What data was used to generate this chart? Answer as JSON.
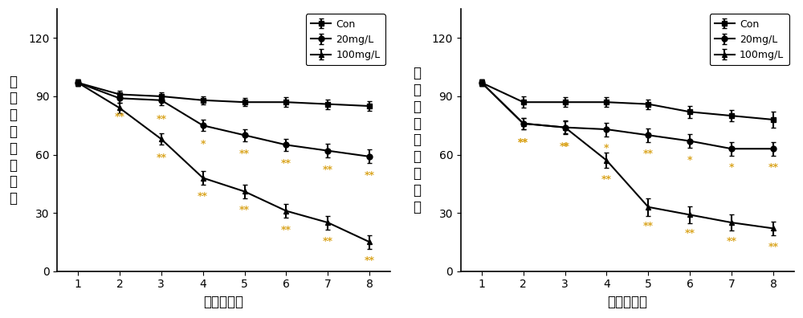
{
  "x": [
    1,
    2,
    3,
    4,
    5,
    6,
    7,
    8
  ],
  "left_ylabel": "褐飞虱若虫存活率",
  "right_ylabel": "白背飞虱若虫存活率",
  "xlabel": "时间（天）",
  "legend_labels": [
    "Con",
    "20mg/L",
    "100mg/L"
  ],
  "left": {
    "con": [
      97,
      91,
      90,
      88,
      87,
      87,
      86,
      85
    ],
    "mg20": [
      97,
      89,
      88,
      75,
      70,
      65,
      62,
      59
    ],
    "mg100": [
      97,
      84,
      68,
      48,
      41,
      31,
      25,
      15
    ],
    "con_err": [
      1.5,
      2.0,
      2.0,
      2.0,
      2.0,
      2.5,
      2.5,
      2.5
    ],
    "mg20_err": [
      1.5,
      2.5,
      2.5,
      3.0,
      3.0,
      3.0,
      3.5,
      3.5
    ],
    "mg100_err": [
      1.5,
      2.5,
      3.0,
      3.5,
      3.5,
      3.5,
      3.5,
      3.5
    ],
    "annot_20": [
      "",
      "**",
      "**",
      "*",
      "**",
      "**",
      "**",
      "**"
    ],
    "annot_100": [
      "",
      "",
      "**",
      "**",
      "**",
      "**",
      "**",
      "**"
    ]
  },
  "right": {
    "con": [
      97,
      87,
      87,
      87,
      86,
      82,
      80,
      78
    ],
    "mg20": [
      97,
      76,
      74,
      73,
      70,
      67,
      63,
      63
    ],
    "mg100": [
      97,
      76,
      74,
      57,
      33,
      29,
      25,
      22
    ],
    "con_err": [
      1.5,
      3.0,
      2.5,
      2.5,
      2.5,
      3.0,
      3.0,
      4.0
    ],
    "mg20_err": [
      1.5,
      3.0,
      3.0,
      3.5,
      3.5,
      3.5,
      3.5,
      3.5
    ],
    "mg100_err": [
      1.5,
      3.0,
      3.5,
      4.0,
      4.5,
      4.5,
      4.0,
      3.5
    ],
    "annot_20": [
      "",
      "**",
      "*",
      "*",
      "**",
      "*",
      "*",
      "**"
    ],
    "annot_100": [
      "",
      "**",
      "**",
      "**",
      "**",
      "**",
      "**",
      "**"
    ]
  },
  "ylim": [
    0,
    135
  ],
  "yticks": [
    0,
    30,
    60,
    90,
    120
  ],
  "color": "#000000",
  "linewidth": 1.5,
  "markersize": 5,
  "annot_fontsize": 9,
  "label_fontsize": 12,
  "tick_fontsize": 10,
  "legend_fontsize": 9,
  "annot_color": "#DAA520"
}
